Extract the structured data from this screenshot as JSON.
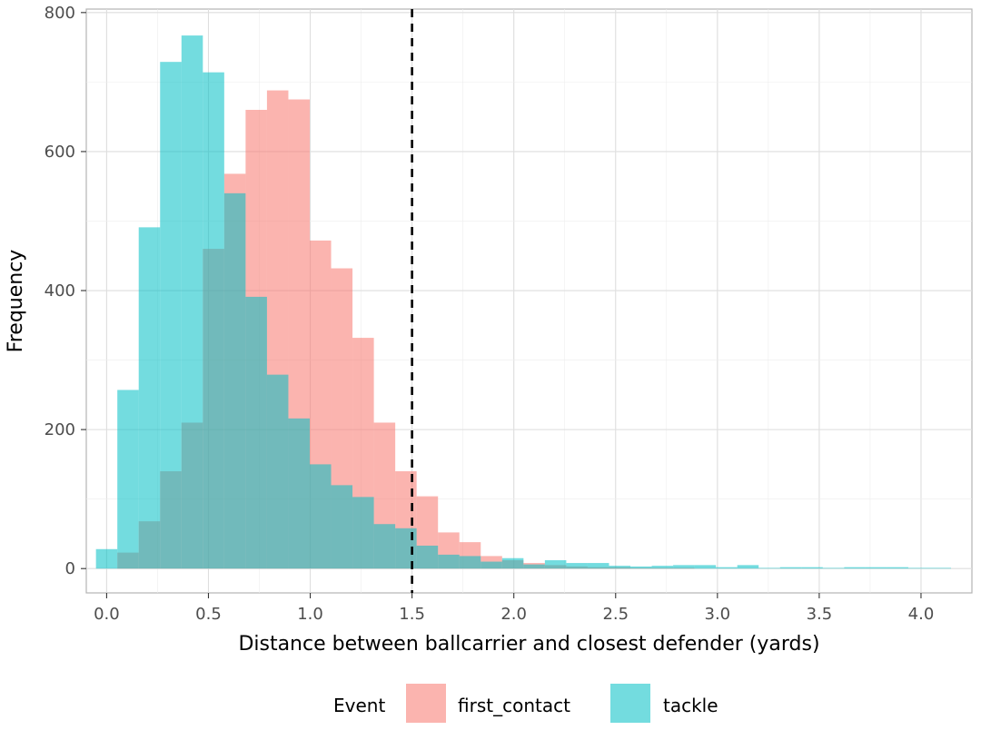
{
  "chart_data": {
    "type": "bar",
    "subtype": "overlapping-histogram",
    "xlabel": "Distance between ballcarrier and closest defender (yards)",
    "ylabel": "Frequency",
    "xlim": [
      -0.1,
      4.25
    ],
    "ylim": [
      -35,
      805
    ],
    "x_ticks": [
      "0.0",
      "0.5",
      "1.0",
      "1.5",
      "2.0",
      "2.5",
      "3.0",
      "3.5",
      "4.0"
    ],
    "x_tick_values": [
      0,
      0.5,
      1,
      1.5,
      2,
      2.5,
      3,
      3.5,
      4
    ],
    "y_ticks": [
      "0",
      "200",
      "400",
      "600",
      "800"
    ],
    "y_tick_values": [
      0,
      200,
      400,
      600,
      800
    ],
    "grid": true,
    "bin_width": 0.105,
    "bin_centers": [
      0.0,
      0.105,
      0.21,
      0.315,
      0.42,
      0.525,
      0.63,
      0.735,
      0.84,
      0.945,
      1.05,
      1.155,
      1.26,
      1.365,
      1.47,
      1.575,
      1.68,
      1.785,
      1.89,
      1.995,
      2.1,
      2.205,
      2.31,
      2.415,
      2.52,
      2.625,
      2.73,
      2.835,
      2.94,
      3.045,
      3.15,
      3.255,
      3.36,
      3.465,
      3.57,
      3.675,
      3.78,
      3.885,
      3.99,
      4.095
    ],
    "series": [
      {
        "name": "first_contact",
        "color": "#F8766D",
        "values": [
          0,
          23,
          68,
          140,
          210,
          460,
          568,
          660,
          688,
          675,
          472,
          432,
          332,
          210,
          140,
          104,
          52,
          38,
          18,
          12,
          8,
          5,
          3,
          2,
          2,
          1,
          1,
          1,
          0,
          0,
          0,
          0,
          0,
          0,
          0,
          0,
          0,
          0,
          0,
          0
        ]
      },
      {
        "name": "tackle",
        "color": "#00BFC4",
        "values": [
          28,
          257,
          491,
          729,
          767,
          714,
          540,
          391,
          279,
          216,
          150,
          120,
          103,
          64,
          58,
          33,
          20,
          18,
          10,
          15,
          6,
          12,
          8,
          8,
          4,
          3,
          4,
          5,
          5,
          2,
          5,
          1,
          2,
          2,
          1,
          2,
          2,
          2,
          1,
          1
        ]
      }
    ],
    "reference_line": {
      "x": 1.5,
      "style": "dashed",
      "color": "#000000"
    },
    "legend": {
      "title": "Event",
      "position": "bottom",
      "entries": [
        "first_contact",
        "tackle"
      ]
    }
  }
}
